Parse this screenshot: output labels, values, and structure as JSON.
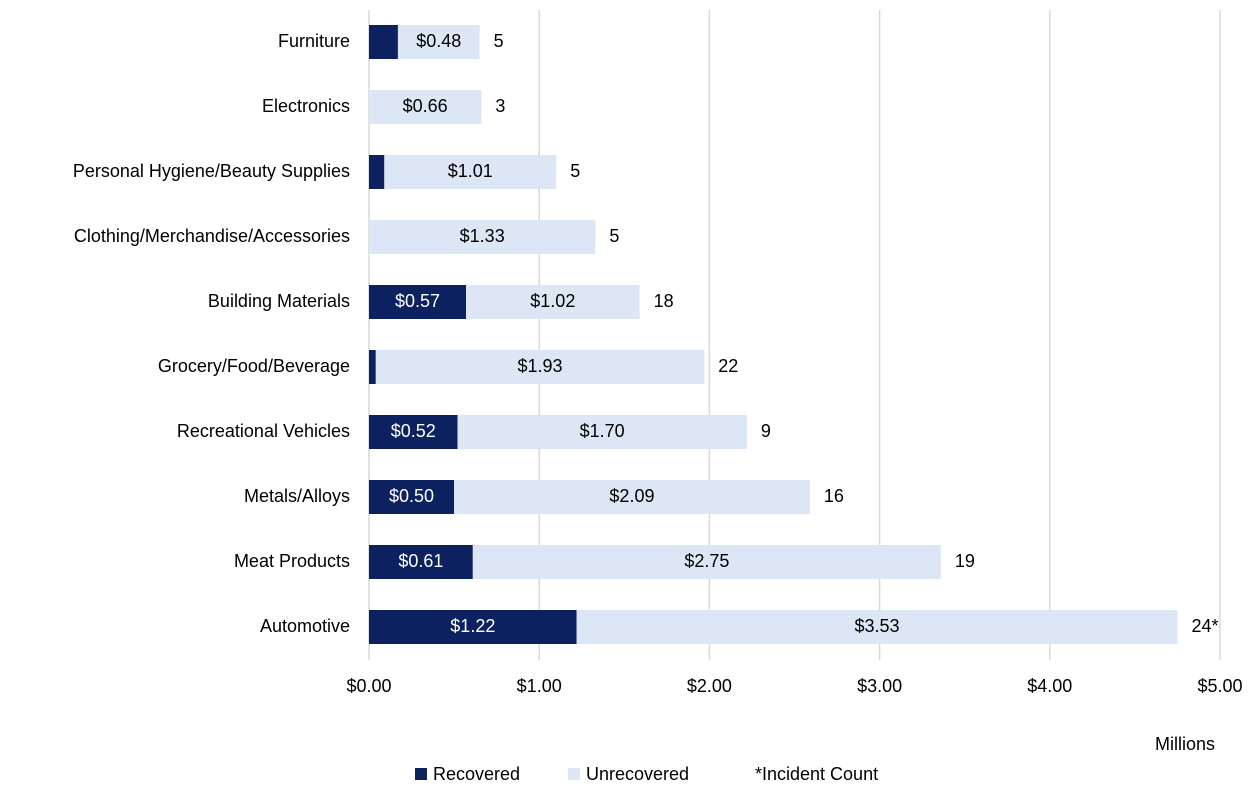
{
  "chart_data": {
    "type": "bar",
    "orientation": "horizontal",
    "stacked": true,
    "categories": [
      "Furniture",
      "Electronics",
      "Personal Hygiene/Beauty Supplies",
      "Clothing/Merchandise/Accessories",
      "Building Materials",
      "Grocery/Food/Beverage",
      "Recreational Vehicles",
      "Metals/Alloys",
      "Meat Products",
      "Automotive"
    ],
    "series": [
      {
        "name": "Recovered",
        "color": "#0b2160",
        "values": [
          0.17,
          0,
          0.09,
          0,
          0.57,
          0.04,
          0.52,
          0.5,
          0.61,
          1.22
        ],
        "value_labels": [
          null,
          null,
          null,
          null,
          "$0.57",
          null,
          "$0.52",
          "$0.50",
          "$0.61",
          "$1.22"
        ]
      },
      {
        "name": "Unrecovered",
        "color": "#dce6f4",
        "values": [
          0.48,
          0.66,
          1.01,
          1.33,
          1.02,
          1.93,
          1.7,
          2.09,
          2.75,
          3.53
        ],
        "value_labels": [
          "$0.48",
          "$0.66",
          "$1.01",
          "$1.33",
          "$1.02",
          "$1.93",
          "$1.70",
          "$2.09",
          "$2.75",
          "$3.53"
        ]
      }
    ],
    "incident_counts": [
      5,
      3,
      5,
      5,
      18,
      22,
      9,
      16,
      19,
      {
        "value": 24,
        "label": "24*"
      }
    ],
    "legend_note": "*Incident Count",
    "x_axis_label": "Millions",
    "xlim": [
      0,
      5
    ],
    "xticks": [
      {
        "value": 0,
        "label": "$0.00"
      },
      {
        "value": 1,
        "label": "$1.00"
      },
      {
        "value": 2,
        "label": "$2.00"
      },
      {
        "value": 3,
        "label": "$3.00"
      },
      {
        "value": 4,
        "label": "$4.00"
      },
      {
        "value": 5,
        "label": "$5.00"
      }
    ],
    "grid": true,
    "legend": "bottom"
  }
}
